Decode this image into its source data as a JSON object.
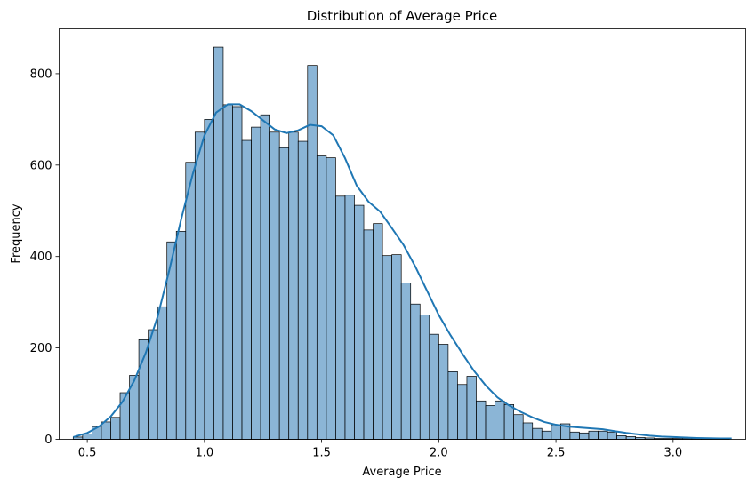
{
  "chart_data": {
    "type": "bar",
    "title": "Distribution of Average Price",
    "xlabel": "Average Price",
    "ylabel": "Frequency",
    "xlim": [
      0.38,
      3.31
    ],
    "ylim": [
      0,
      898
    ],
    "xticks": [
      0.5,
      1.0,
      1.5,
      2.0,
      2.5,
      3.0
    ],
    "xtick_labels": [
      "0.5",
      "1.0",
      "1.5",
      "2.0",
      "2.5",
      "3.0"
    ],
    "yticks": [
      0,
      200,
      400,
      600,
      800
    ],
    "ytick_labels": [
      "0",
      "200",
      "400",
      "600",
      "800"
    ],
    "bin_start": 0.44,
    "bin_width": 0.04,
    "counts": [
      5,
      12,
      28,
      38,
      48,
      102,
      140,
      218,
      240,
      290,
      432,
      455,
      606,
      672,
      700,
      858,
      732,
      728,
      654,
      683,
      710,
      672,
      638,
      672,
      652,
      818,
      620,
      616,
      532,
      534,
      512,
      458,
      472,
      402,
      404,
      342,
      296,
      272,
      230,
      208,
      148,
      120,
      138,
      84,
      74,
      84,
      76,
      54,
      36,
      24,
      18,
      32,
      34,
      16,
      14,
      18,
      18,
      16,
      8,
      6,
      4,
      3,
      2,
      2,
      2,
      2,
      2,
      2,
      2,
      2
    ],
    "kde": {
      "color": "#1f77b4",
      "x": [
        0.44,
        0.5,
        0.55,
        0.6,
        0.65,
        0.7,
        0.75,
        0.8,
        0.85,
        0.9,
        0.95,
        1.0,
        1.05,
        1.1,
        1.15,
        1.2,
        1.25,
        1.3,
        1.35,
        1.4,
        1.45,
        1.5,
        1.55,
        1.6,
        1.65,
        1.7,
        1.75,
        1.8,
        1.85,
        1.9,
        1.95,
        2.0,
        2.05,
        2.1,
        2.15,
        2.2,
        2.25,
        2.3,
        2.35,
        2.4,
        2.45,
        2.5,
        2.55,
        2.6,
        2.65,
        2.7,
        2.75,
        2.8,
        2.85,
        2.9,
        2.95,
        3.0,
        3.1,
        3.2,
        3.25
      ],
      "y": [
        5,
        14,
        28,
        50,
        82,
        128,
        190,
        268,
        370,
        480,
        580,
        665,
        715,
        733,
        733,
        718,
        698,
        678,
        670,
        676,
        688,
        685,
        665,
        615,
        555,
        520,
        498,
        462,
        425,
        378,
        325,
        272,
        228,
        188,
        150,
        118,
        92,
        74,
        60,
        48,
        38,
        32,
        28,
        26,
        24,
        22,
        18,
        14,
        11,
        8,
        6,
        5,
        3,
        2,
        2
      ]
    },
    "bar_color": "#6ea2cc",
    "grid": false,
    "legend": "none"
  }
}
